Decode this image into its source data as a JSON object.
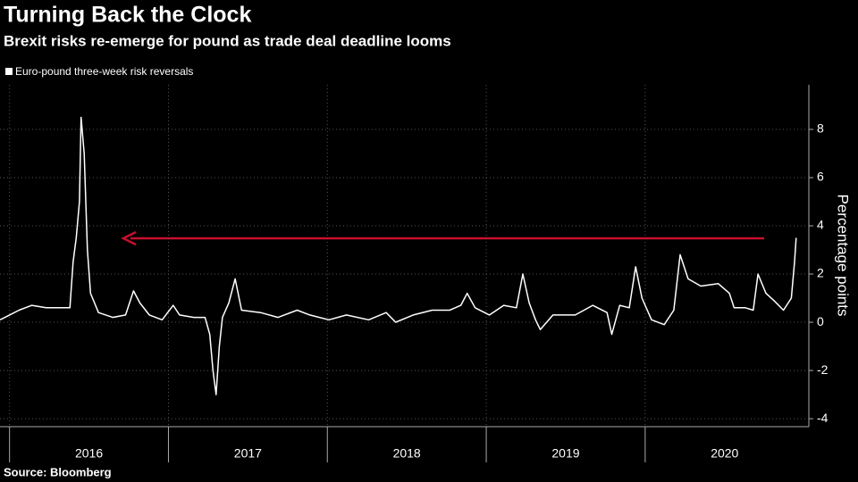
{
  "chart_data": {
    "type": "line",
    "title": "Turning Back the Clock",
    "subtitle": "Brexit risks re-emerge for pound as trade deal deadline looms",
    "y_label": "Percentage points",
    "source": "Source: Bloomberg",
    "x": [
      2015.94,
      2016.0,
      2016.06,
      2016.14,
      2016.23,
      2016.31,
      2016.38,
      2016.4,
      2016.42,
      2016.44,
      2016.45,
      2016.47,
      2016.49,
      2016.51,
      2016.56,
      2016.65,
      2016.73,
      2016.78,
      2016.82,
      2016.88,
      2016.96,
      2017.03,
      2017.07,
      2017.16,
      2017.23,
      2017.26,
      2017.28,
      2017.3,
      2017.32,
      2017.34,
      2017.38,
      2017.42,
      2017.46,
      2017.58,
      2017.69,
      2017.81,
      2017.89,
      2018.01,
      2018.12,
      2018.26,
      2018.37,
      2018.43,
      2018.54,
      2018.66,
      2018.77,
      2018.84,
      2018.88,
      2018.93,
      2019.02,
      2019.11,
      2019.19,
      2019.23,
      2019.27,
      2019.31,
      2019.34,
      2019.42,
      2019.56,
      2019.67,
      2019.76,
      2019.79,
      2019.84,
      2019.9,
      2019.94,
      2019.98,
      2020.04,
      2020.12,
      2020.18,
      2020.22,
      2020.27,
      2020.35,
      2020.46,
      2020.53,
      2020.56,
      2020.63,
      2020.68,
      2020.71,
      2020.76,
      2020.81,
      2020.87,
      2020.92,
      2020.94,
      2020.95
    ],
    "series": [
      {
        "name": "Euro-pound three-week risk reversals",
        "color": "#ffffff",
        "values": [
          0.1,
          0.3,
          0.5,
          0.7,
          0.6,
          0.6,
          0.6,
          2.5,
          3.5,
          5,
          8.5,
          7,
          3,
          1.2,
          0.4,
          0.2,
          0.3,
          1.3,
          0.8,
          0.3,
          0.1,
          0.7,
          0.3,
          0.2,
          0.2,
          -0.5,
          -2,
          -3,
          -1,
          0.2,
          0.8,
          1.8,
          0.5,
          0.4,
          0.2,
          0.5,
          0.3,
          0.1,
          0.3,
          0.1,
          0.4,
          0.0,
          0.3,
          0.5,
          0.5,
          0.7,
          1.2,
          0.6,
          0.3,
          0.7,
          0.6,
          2.0,
          0.8,
          0.1,
          -0.3,
          0.3,
          0.3,
          0.7,
          0.4,
          -0.5,
          0.7,
          0.6,
          2.3,
          1,
          0.1,
          -0.1,
          0.5,
          2.8,
          1.8,
          1.5,
          1.6,
          1.2,
          0.6,
          0.6,
          0.5,
          2.0,
          1.2,
          0.9,
          0.5,
          1.0,
          2.5,
          3.5
        ]
      }
    ],
    "xlim": [
      2015.94,
      2021.03
    ],
    "xticks": [
      2016,
      2017,
      2018,
      2019,
      2020
    ],
    "ylim": [
      -4.33,
      9.85
    ],
    "yticks": [
      -4,
      -2,
      0,
      2,
      4,
      6,
      8
    ],
    "grid": true
  }
}
